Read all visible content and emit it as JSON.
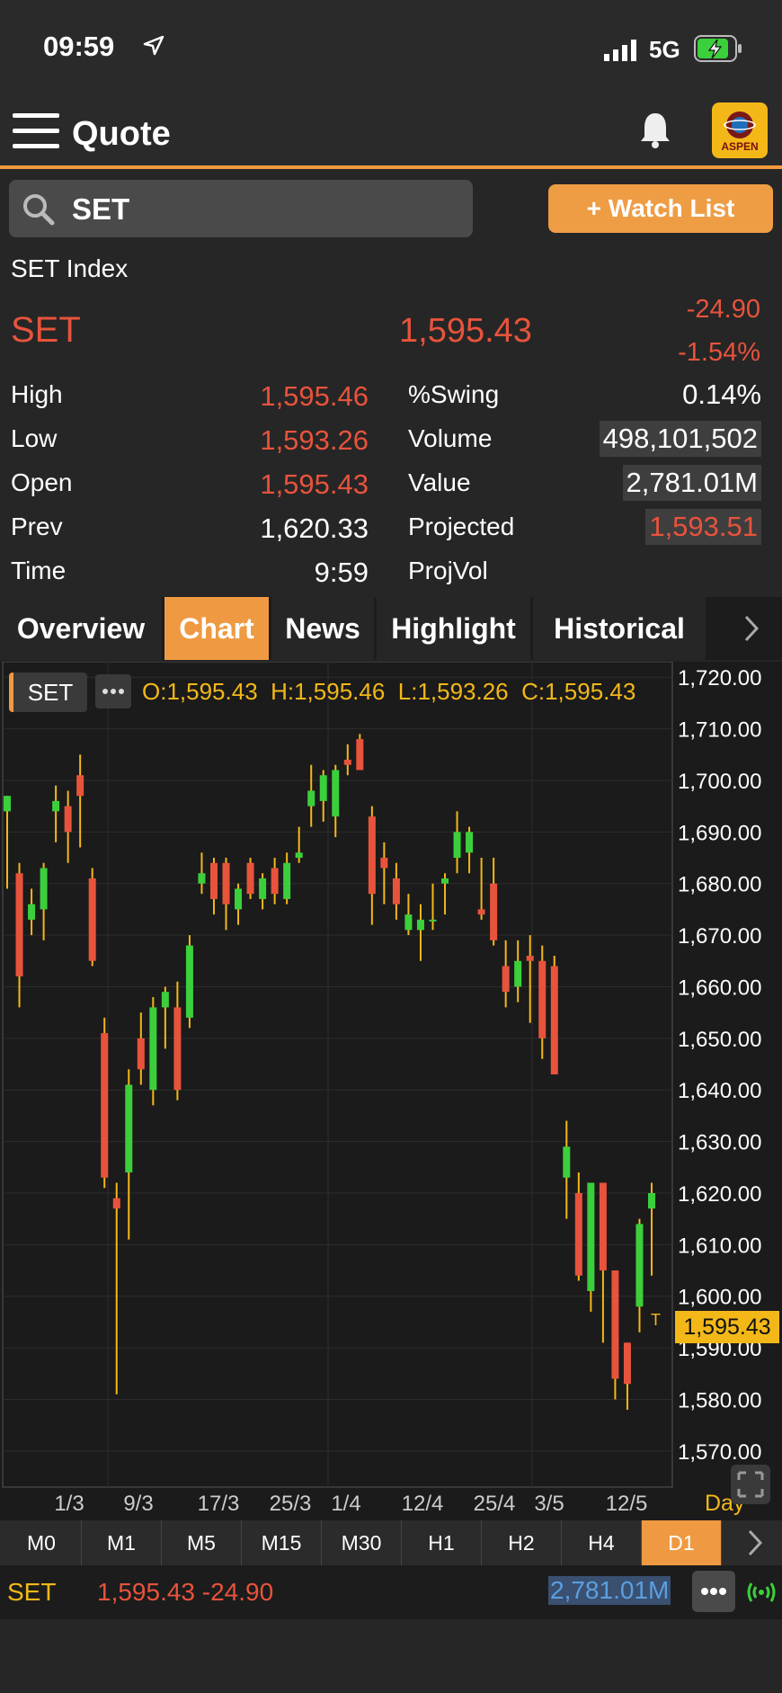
{
  "status_bar": {
    "time": "09:59",
    "network": "5G"
  },
  "header": {
    "title": "Quote",
    "logo_text": "ASPEN"
  },
  "search": {
    "value": "SET"
  },
  "watchlist_button": "+ Watch List",
  "quote": {
    "name": "SET Index",
    "symbol": "SET",
    "last": "1,595.43",
    "change": "-24.90",
    "change_pct": "-1.54%",
    "stats_left": [
      {
        "label": "High",
        "value": "1,595.46",
        "color": "red"
      },
      {
        "label": "Low",
        "value": "1,593.26",
        "color": "red"
      },
      {
        "label": "Open",
        "value": "1,595.43",
        "color": "red"
      },
      {
        "label": "Prev",
        "value": "1,620.33",
        "color": "white"
      },
      {
        "label": "Time",
        "value": "9:59",
        "color": "white"
      }
    ],
    "stats_right": [
      {
        "label": "%Swing",
        "value": "0.14%",
        "color": "white",
        "boxed": false
      },
      {
        "label": "Volume",
        "value": "498,101,502",
        "color": "white",
        "boxed": true
      },
      {
        "label": "Value",
        "value": "2,781.01M",
        "color": "white",
        "boxed": true
      },
      {
        "label": "Projected",
        "value": "1,593.51",
        "color": "red",
        "boxed": true
      },
      {
        "label": "ProjVol",
        "value": "",
        "color": "white",
        "boxed": false
      }
    ]
  },
  "tabs": [
    "Overview",
    "Chart",
    "News",
    "Highlight",
    "Historical"
  ],
  "active_tab": "Chart",
  "chart_data": {
    "type": "candlestick",
    "symbol_tag": "SET",
    "ohlc_label": "O:1,595.43  H:1,595.46  L:1,593.26  C:1,595.43",
    "ylim": [
      1563,
      1723
    ],
    "y_ticks": [
      "1,720.00",
      "1,710.00",
      "1,700.00",
      "1,690.00",
      "1,680.00",
      "1,670.00",
      "1,660.00",
      "1,650.00",
      "1,640.00",
      "1,630.00",
      "1,620.00",
      "1,610.00",
      "1,600.00",
      "1,590.00",
      "1,580.00",
      "1,570.00"
    ],
    "x_labels": [
      "1/3",
      "9/3",
      "17/3",
      "25/3",
      "1/4",
      "12/4",
      "25/4",
      "3/5",
      "12/5"
    ],
    "current_price_label": "1,595.43",
    "period_label": "Day",
    "marker_text": "T",
    "up_color": "#3ccf3c",
    "down_color": "#e8533c",
    "candles": [
      {
        "o": 1694,
        "h": 1697,
        "l": 1679,
        "c": 1697
      },
      {
        "o": 1682,
        "h": 1684,
        "l": 1656,
        "c": 1662
      },
      {
        "o": 1673,
        "h": 1679,
        "l": 1670,
        "c": 1676
      },
      {
        "o": 1675,
        "h": 1684,
        "l": 1669,
        "c": 1683
      },
      {
        "o": 1694,
        "h": 1699,
        "l": 1688,
        "c": 1696
      },
      {
        "o": 1695,
        "h": 1698,
        "l": 1684,
        "c": 1690
      },
      {
        "o": 1701,
        "h": 1705,
        "l": 1687,
        "c": 1697
      },
      {
        "o": 1681,
        "h": 1683,
        "l": 1664,
        "c": 1665
      },
      {
        "o": 1651,
        "h": 1654,
        "l": 1621,
        "c": 1623
      },
      {
        "o": 1619,
        "h": 1622,
        "l": 1581,
        "c": 1617
      },
      {
        "o": 1624,
        "h": 1644,
        "l": 1611,
        "c": 1641
      },
      {
        "o": 1650,
        "h": 1655,
        "l": 1641,
        "c": 1644
      },
      {
        "o": 1640,
        "h": 1658,
        "l": 1637,
        "c": 1656
      },
      {
        "o": 1656,
        "h": 1660,
        "l": 1648,
        "c": 1659
      },
      {
        "o": 1656,
        "h": 1661,
        "l": 1638,
        "c": 1640
      },
      {
        "o": 1654,
        "h": 1670,
        "l": 1652,
        "c": 1668
      },
      {
        "o": 1680,
        "h": 1686,
        "l": 1678,
        "c": 1682
      },
      {
        "o": 1684,
        "h": 1685,
        "l": 1674,
        "c": 1677
      },
      {
        "o": 1684,
        "h": 1685,
        "l": 1671,
        "c": 1676
      },
      {
        "o": 1675,
        "h": 1680,
        "l": 1672,
        "c": 1679
      },
      {
        "o": 1684,
        "h": 1685,
        "l": 1677,
        "c": 1678
      },
      {
        "o": 1677,
        "h": 1682,
        "l": 1675,
        "c": 1681
      },
      {
        "o": 1683,
        "h": 1685,
        "l": 1676,
        "c": 1678
      },
      {
        "o": 1677,
        "h": 1686,
        "l": 1676,
        "c": 1684
      },
      {
        "o": 1685,
        "h": 1691,
        "l": 1684,
        "c": 1686
      },
      {
        "o": 1695,
        "h": 1703,
        "l": 1691,
        "c": 1698
      },
      {
        "o": 1696,
        "h": 1702,
        "l": 1692,
        "c": 1701
      },
      {
        "o": 1693,
        "h": 1703,
        "l": 1689,
        "c": 1702
      },
      {
        "o": 1704,
        "h": 1707,
        "l": 1701,
        "c": 1703
      },
      {
        "o": 1708,
        "h": 1709,
        "l": 1702,
        "c": 1702
      },
      {
        "o": 1693,
        "h": 1695,
        "l": 1672,
        "c": 1678
      },
      {
        "o": 1685,
        "h": 1688,
        "l": 1676,
        "c": 1683
      },
      {
        "o": 1681,
        "h": 1684,
        "l": 1673,
        "c": 1676
      },
      {
        "o": 1671,
        "h": 1678,
        "l": 1670,
        "c": 1674
      },
      {
        "o": 1671,
        "h": 1676,
        "l": 1665,
        "c": 1673
      },
      {
        "o": 1673,
        "h": 1680,
        "l": 1671,
        "c": 1673
      },
      {
        "o": 1680,
        "h": 1682,
        "l": 1674,
        "c": 1681
      },
      {
        "o": 1685,
        "h": 1694,
        "l": 1682,
        "c": 1690
      },
      {
        "o": 1686,
        "h": 1691,
        "l": 1682,
        "c": 1690
      },
      {
        "o": 1675,
        "h": 1685,
        "l": 1673,
        "c": 1674
      },
      {
        "o": 1680,
        "h": 1685,
        "l": 1668,
        "c": 1669
      },
      {
        "o": 1664,
        "h": 1669,
        "l": 1656,
        "c": 1659
      },
      {
        "o": 1660,
        "h": 1669,
        "l": 1657,
        "c": 1665
      },
      {
        "o": 1666,
        "h": 1670,
        "l": 1653,
        "c": 1665
      },
      {
        "o": 1665,
        "h": 1668,
        "l": 1646,
        "c": 1650
      },
      {
        "o": 1664,
        "h": 1666,
        "l": 1643,
        "c": 1643
      },
      {
        "o": 1623,
        "h": 1634,
        "l": 1615,
        "c": 1629
      },
      {
        "o": 1620,
        "h": 1624,
        "l": 1603,
        "c": 1604
      },
      {
        "o": 1601,
        "h": 1622,
        "l": 1597,
        "c": 1622
      },
      {
        "o": 1622,
        "h": 1622,
        "l": 1591,
        "c": 1605
      },
      {
        "o": 1605,
        "h": 1605,
        "l": 1580,
        "c": 1584
      },
      {
        "o": 1591,
        "h": 1591,
        "l": 1578,
        "c": 1583
      },
      {
        "o": 1598,
        "h": 1615,
        "l": 1593,
        "c": 1614
      },
      {
        "o": 1617,
        "h": 1622,
        "l": 1604,
        "c": 1620
      }
    ]
  },
  "timeframes": [
    "M0",
    "M1",
    "M5",
    "M15",
    "M30",
    "H1",
    "H2",
    "H4",
    "D1"
  ],
  "active_timeframe": "D1",
  "ticker_bar": {
    "symbol": "SET",
    "price_change": "1,595.43 -24.90",
    "value": "2,781.01M"
  }
}
